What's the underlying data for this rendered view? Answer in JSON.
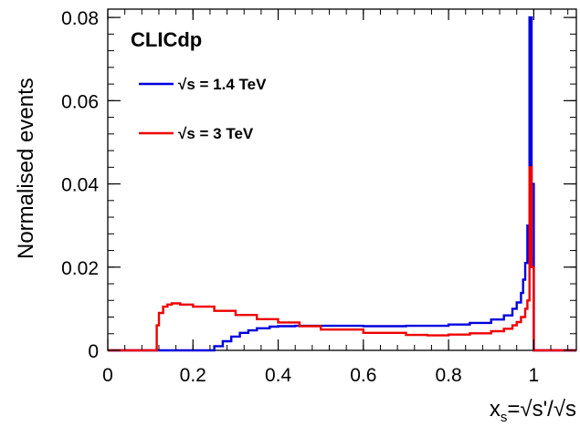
{
  "logo": "CLICdp",
  "chart_data": {
    "type": "line",
    "xlabel": "x_s=√s'/√s",
    "xlabel_parts": {
      "main": "x",
      "sub": "s",
      "rest": "=√s'/√s"
    },
    "ylabel": "Normalised events",
    "xlim": [
      0,
      1.1
    ],
    "ylim": [
      0,
      0.082
    ],
    "x_ticks": [
      0,
      0.2,
      0.4,
      0.6,
      0.8,
      1
    ],
    "x_tick_labels": [
      "0",
      "0.2",
      "0.4",
      "0.6",
      "0.8",
      "1"
    ],
    "y_ticks": [
      0,
      0.02,
      0.04,
      0.06,
      0.08
    ],
    "y_tick_labels": [
      "0",
      "0.02",
      "0.04",
      "0.06",
      "0.08"
    ],
    "grid": false,
    "legend_position": "top-left",
    "series": [
      {
        "name": "√s = 1.4 TeV",
        "color": "#0000dd",
        "x": [
          0,
          0.24,
          0.25,
          0.27,
          0.29,
          0.31,
          0.33,
          0.35,
          0.38,
          0.4,
          0.44,
          0.5,
          0.6,
          0.7,
          0.8,
          0.85,
          0.9,
          0.93,
          0.95,
          0.96,
          0.97,
          0.975,
          0.98,
          0.985,
          0.99,
          0.995,
          1.0,
          1.005,
          1.1
        ],
        "y": [
          0,
          0,
          0.001,
          0.0022,
          0.0033,
          0.0042,
          0.0048,
          0.0053,
          0.0057,
          0.0058,
          0.0059,
          0.0059,
          0.0058,
          0.0059,
          0.0062,
          0.0066,
          0.0074,
          0.0084,
          0.01,
          0.0115,
          0.0138,
          0.017,
          0.021,
          0.03,
          0.08,
          0.04,
          0,
          0,
          0
        ]
      },
      {
        "name": "√s = 3 TeV",
        "color": "#ee0000",
        "x": [
          0,
          0.11,
          0.115,
          0.12,
          0.13,
          0.14,
          0.15,
          0.17,
          0.2,
          0.25,
          0.3,
          0.35,
          0.4,
          0.45,
          0.5,
          0.6,
          0.7,
          0.75,
          0.8,
          0.85,
          0.9,
          0.93,
          0.95,
          0.96,
          0.97,
          0.98,
          0.985,
          0.99,
          0.995,
          1.0,
          1.005,
          1.1
        ],
        "y": [
          0,
          0,
          0.006,
          0.009,
          0.0105,
          0.011,
          0.0113,
          0.011,
          0.0105,
          0.0095,
          0.0085,
          0.0075,
          0.0067,
          0.0058,
          0.005,
          0.0042,
          0.0037,
          0.0036,
          0.0038,
          0.0041,
          0.0046,
          0.0052,
          0.006,
          0.0068,
          0.008,
          0.01,
          0.012,
          0.044,
          0.02,
          0,
          0,
          0
        ]
      }
    ]
  }
}
